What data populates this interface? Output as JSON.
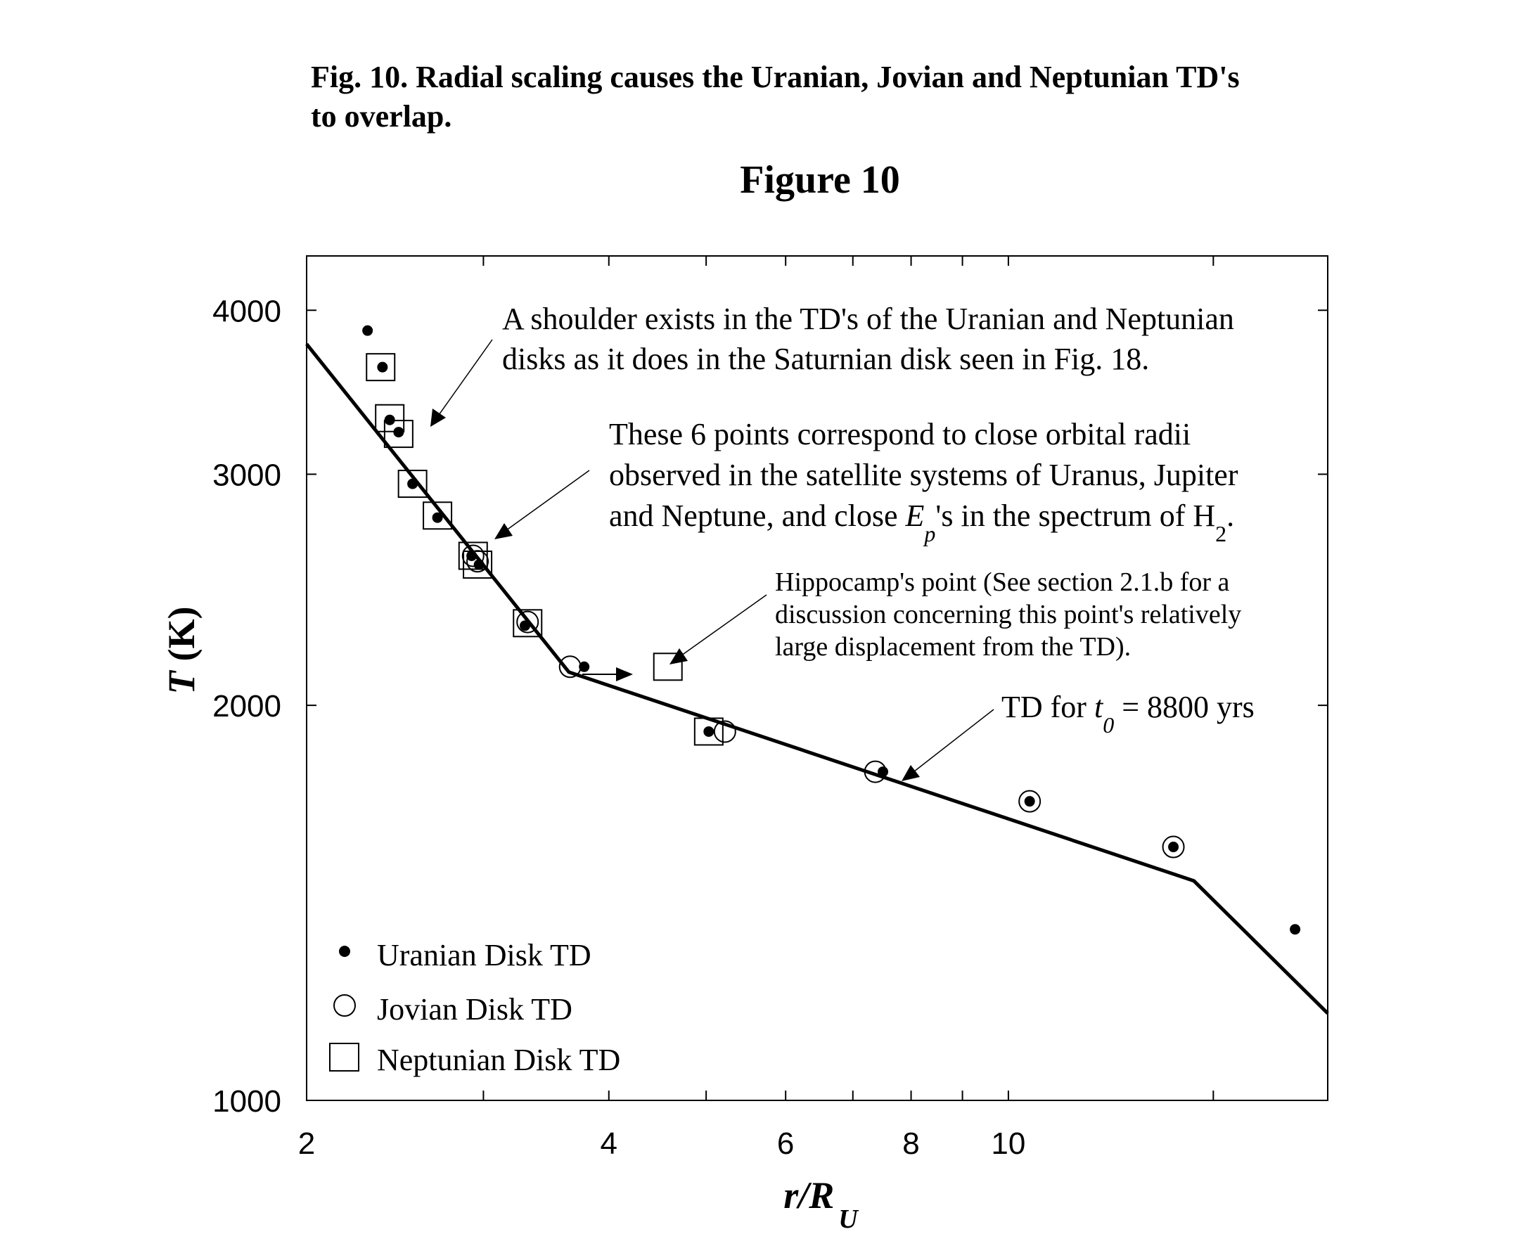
{
  "caption": {
    "line1": "Fig. 10. Radial scaling causes the Uranian, Jovian and Neptunian TD's",
    "line2": "to overlap."
  },
  "chart_data": {
    "type": "scatter",
    "title": "Figure 10",
    "xlabel": {
      "main": "r/R",
      "sub": "U"
    },
    "ylabel": {
      "main": "T",
      "unit": "(K)"
    },
    "x_scale": "log",
    "y_scale": "log",
    "xlim": [
      2,
      20.8
    ],
    "ylim": [
      1000,
      4400
    ],
    "x_ticks": [
      {
        "value": 2,
        "label": "2"
      },
      {
        "value": 4,
        "label": "4"
      },
      {
        "value": 6,
        "label": "6"
      },
      {
        "value": 8,
        "label": "8"
      },
      {
        "value": 10,
        "label": "10"
      }
    ],
    "x_minor_ticks": [
      3,
      5,
      7,
      9,
      16
    ],
    "y_ticks": [
      {
        "value": 1000,
        "label": "1000"
      },
      {
        "value": 2000,
        "label": "2000"
      },
      {
        "value": 3000,
        "label": "3000"
      },
      {
        "value": 4000,
        "label": "4000"
      }
    ],
    "grid": false,
    "legend_position": "bottom-left",
    "series": [
      {
        "name": "Uranian Disk TD",
        "marker": "filled-circle",
        "x": [
          2.3,
          2.38,
          2.42,
          2.47,
          2.55,
          2.7,
          2.92,
          2.97,
          3.3,
          3.78,
          5.03,
          7.5,
          10.5,
          14.6,
          19.3
        ],
        "y": [
          3860,
          3620,
          3300,
          3230,
          2950,
          2780,
          2600,
          2560,
          2300,
          2140,
          1910,
          1780,
          1690,
          1560,
          1350
        ]
      },
      {
        "name": "Jovian Disk TD",
        "marker": "open-circle",
        "x": [
          2.93,
          2.96,
          3.32,
          3.66,
          5.22,
          7.37,
          10.5,
          14.6
        ],
        "y": [
          2600,
          2575,
          2315,
          2140,
          1910,
          1780,
          1690,
          1560
        ]
      },
      {
        "name": "Neptunian Disk TD",
        "marker": "open-square",
        "x": [
          2.37,
          2.42,
          2.47,
          2.55,
          2.7,
          2.93,
          2.96,
          3.32,
          4.58,
          5.03
        ],
        "y": [
          3620,
          3310,
          3220,
          2950,
          2790,
          2600,
          2560,
          2310,
          2140,
          1910
        ]
      }
    ],
    "td_line": {
      "label_pre": "TD for ",
      "label_var": "t",
      "label_sub": "0",
      "label_post": " = 8800 yrs",
      "x": [
        2.0,
        3.65,
        15.3,
        20.8
      ],
      "y": [
        3770,
        2120,
        1470,
        1165
      ]
    },
    "annotations": [
      {
        "text": [
          "A shoulder exists in the TD's of the Uranian and Neptunian",
          "disks as it does in the Saturnian disk seen in Fig. 18."
        ]
      },
      {
        "lines": [
          "These 6 points correspond to close orbital radii",
          "observed in the satellite systems of Uranus, Jupiter"
        ],
        "line3_pre": "and Neptune, and close ",
        "line3_var": "E",
        "line3_sub": "p",
        "line3_mid": "'s in the spectrum of H",
        "line3_sub2": "2",
        "line3_end": "."
      },
      {
        "text": [
          "Hippocamp's point (See section 2.1.b for a",
          "discussion concerning this point's relatively",
          "large displacement from the TD)."
        ]
      }
    ]
  }
}
